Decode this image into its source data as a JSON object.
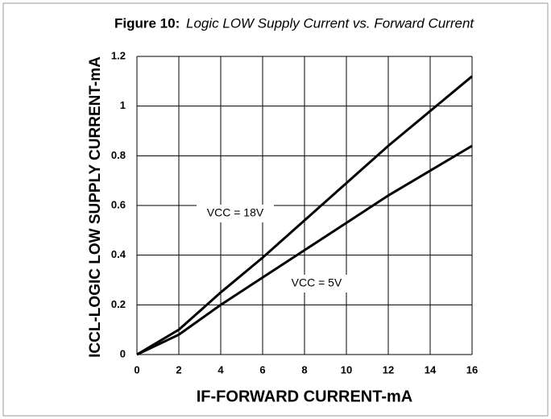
{
  "chart_data": {
    "type": "line",
    "figure_label": "Figure 10:",
    "title": "Logic LOW Supply Current vs. Forward Current",
    "x_label": "IF-FORWARD CURRENT-mA",
    "y_label": "ICCL-LOGIC LOW SUPPLY CURRENT-mA",
    "x": [
      0,
      2,
      4,
      6,
      8,
      10,
      12,
      14,
      16
    ],
    "series": [
      {
        "name": "VCC = 18V",
        "color": "#000000",
        "values": [
          0,
          0.1,
          0.25,
          0.39,
          0.54,
          0.69,
          0.84,
          0.98,
          1.12
        ]
      },
      {
        "name": "VCC = 5V",
        "color": "#000000",
        "values": [
          0,
          0.08,
          0.2,
          0.31,
          0.42,
          0.53,
          0.64,
          0.74,
          0.84
        ]
      }
    ],
    "xlim": [
      0,
      16
    ],
    "xticks": [
      0,
      2,
      4,
      6,
      8,
      10,
      12,
      14,
      16
    ],
    "ylim": [
      0,
      1.2
    ],
    "yticks": [
      0,
      0.2,
      0.4,
      0.6,
      0.8,
      1,
      1.2
    ],
    "grid": true
  }
}
